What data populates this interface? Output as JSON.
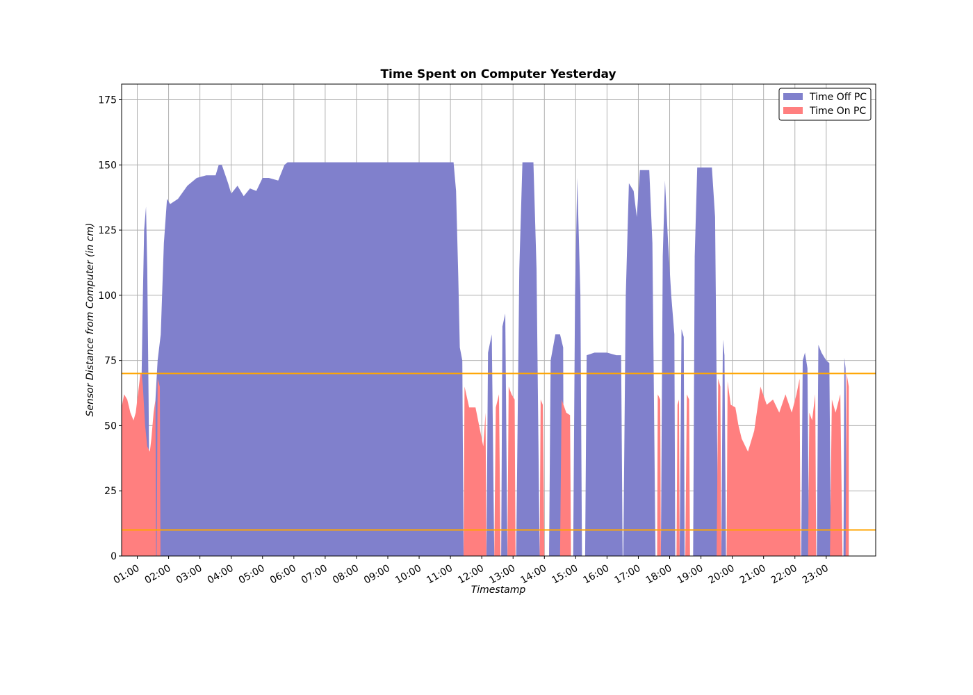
{
  "chart_data": {
    "type": "area",
    "title": "Time Spent on Computer Yesterday",
    "xlabel": "Timestamp",
    "ylabel": "Sensor Distance from Computer (in cm)",
    "xlim": [
      0.5,
      24.58
    ],
    "ylim": [
      0,
      181
    ],
    "x_unit": "hours since midnight",
    "x_ticks": [
      {
        "value": 1,
        "label": "01:00"
      },
      {
        "value": 2,
        "label": "02:00"
      },
      {
        "value": 3,
        "label": "03:00"
      },
      {
        "value": 4,
        "label": "04:00"
      },
      {
        "value": 5,
        "label": "05:00"
      },
      {
        "value": 6,
        "label": "06:00"
      },
      {
        "value": 7,
        "label": "07:00"
      },
      {
        "value": 8,
        "label": "08:00"
      },
      {
        "value": 9,
        "label": "09:00"
      },
      {
        "value": 10,
        "label": "10:00"
      },
      {
        "value": 11,
        "label": "11:00"
      },
      {
        "value": 12,
        "label": "12:00"
      },
      {
        "value": 13,
        "label": "13:00"
      },
      {
        "value": 14,
        "label": "14:00"
      },
      {
        "value": 15,
        "label": "15:00"
      },
      {
        "value": 16,
        "label": "16:00"
      },
      {
        "value": 17,
        "label": "17:00"
      },
      {
        "value": 18,
        "label": "18:00"
      },
      {
        "value": 19,
        "label": "19:00"
      },
      {
        "value": 20,
        "label": "20:00"
      },
      {
        "value": 21,
        "label": "21:00"
      },
      {
        "value": 22,
        "label": "22:00"
      },
      {
        "value": 23,
        "label": "23:00"
      }
    ],
    "y_ticks": [
      {
        "value": 0,
        "label": "0"
      },
      {
        "value": 25,
        "label": "25"
      },
      {
        "value": 50,
        "label": "50"
      },
      {
        "value": 75,
        "label": "75"
      },
      {
        "value": 100,
        "label": "100"
      },
      {
        "value": 125,
        "label": "125"
      },
      {
        "value": 150,
        "label": "150"
      },
      {
        "value": 175,
        "label": "175"
      }
    ],
    "grid": true,
    "legend_position": "top-right",
    "thresholds": [
      {
        "value": 70,
        "color": "#FFA500"
      },
      {
        "value": 10,
        "color": "#FFA500"
      }
    ],
    "series": [
      {
        "name": "Time Off PC",
        "color": "#8080cc",
        "points": [
          [
            1.1,
            0
          ],
          [
            1.12,
            55
          ],
          [
            1.18,
            100
          ],
          [
            1.22,
            125
          ],
          [
            1.28,
            134
          ],
          [
            1.32,
            110
          ],
          [
            1.36,
            60
          ],
          [
            1.4,
            0
          ],
          [
            1.55,
            0
          ],
          [
            1.58,
            60
          ],
          [
            1.65,
            75
          ],
          [
            1.75,
            85
          ],
          [
            1.85,
            120
          ],
          [
            1.95,
            137
          ],
          [
            2.05,
            135
          ],
          [
            2.3,
            137
          ],
          [
            2.6,
            142
          ],
          [
            2.9,
            145
          ],
          [
            3.2,
            146
          ],
          [
            3.5,
            146
          ],
          [
            3.6,
            150
          ],
          [
            3.7,
            150
          ],
          [
            3.9,
            143
          ],
          [
            4.0,
            139
          ],
          [
            4.2,
            142
          ],
          [
            4.4,
            138
          ],
          [
            4.6,
            141
          ],
          [
            4.8,
            140
          ],
          [
            5.0,
            145
          ],
          [
            5.2,
            145
          ],
          [
            5.5,
            144
          ],
          [
            5.7,
            150
          ],
          [
            5.8,
            151
          ],
          [
            6.5,
            151
          ],
          [
            7.5,
            151
          ],
          [
            8.5,
            151
          ],
          [
            9.5,
            151
          ],
          [
            10.5,
            151
          ],
          [
            11.1,
            151
          ],
          [
            11.18,
            140
          ],
          [
            11.25,
            107
          ],
          [
            11.3,
            80
          ],
          [
            11.38,
            75
          ],
          [
            11.42,
            0
          ],
          [
            12.15,
            0
          ],
          [
            12.2,
            78
          ],
          [
            12.32,
            85
          ],
          [
            12.4,
            0
          ],
          [
            12.62,
            0
          ],
          [
            12.66,
            88
          ],
          [
            12.75,
            93
          ],
          [
            12.82,
            0
          ],
          [
            13.1,
            0
          ],
          [
            13.2,
            110
          ],
          [
            13.3,
            151
          ],
          [
            13.65,
            151
          ],
          [
            13.75,
            110
          ],
          [
            13.85,
            0
          ],
          [
            14.15,
            0
          ],
          [
            14.2,
            75
          ],
          [
            14.35,
            85
          ],
          [
            14.5,
            85
          ],
          [
            14.6,
            80
          ],
          [
            14.62,
            0
          ],
          [
            14.92,
            0
          ],
          [
            14.98,
            100
          ],
          [
            15.05,
            145
          ],
          [
            15.15,
            100
          ],
          [
            15.2,
            0
          ],
          [
            15.3,
            0
          ],
          [
            15.35,
            77
          ],
          [
            15.6,
            78
          ],
          [
            16.0,
            78
          ],
          [
            16.3,
            77
          ],
          [
            16.45,
            77
          ],
          [
            16.5,
            0
          ],
          [
            16.52,
            0
          ],
          [
            16.6,
            100
          ],
          [
            16.7,
            143
          ],
          [
            16.85,
            140
          ],
          [
            16.95,
            130
          ],
          [
            17.05,
            148
          ],
          [
            17.35,
            148
          ],
          [
            17.45,
            120
          ],
          [
            17.55,
            0
          ],
          [
            17.72,
            0
          ],
          [
            17.78,
            115
          ],
          [
            17.85,
            144
          ],
          [
            17.95,
            120
          ],
          [
            18.05,
            100
          ],
          [
            18.15,
            85
          ],
          [
            18.18,
            0
          ],
          [
            18.32,
            0
          ],
          [
            18.38,
            87
          ],
          [
            18.45,
            84
          ],
          [
            18.48,
            0
          ],
          [
            18.75,
            0
          ],
          [
            18.8,
            115
          ],
          [
            18.88,
            149
          ],
          [
            19.25,
            149
          ],
          [
            19.35,
            149
          ],
          [
            19.45,
            130
          ],
          [
            19.55,
            0
          ],
          [
            19.65,
            0
          ],
          [
            19.7,
            83
          ],
          [
            19.75,
            77
          ],
          [
            19.8,
            0
          ],
          [
            22.2,
            0
          ],
          [
            22.25,
            75
          ],
          [
            22.32,
            78
          ],
          [
            22.4,
            72
          ],
          [
            22.45,
            0
          ],
          [
            22.7,
            0
          ],
          [
            22.75,
            81
          ],
          [
            22.85,
            78
          ],
          [
            23.0,
            75
          ],
          [
            23.1,
            74
          ],
          [
            23.15,
            0
          ],
          [
            23.55,
            0
          ],
          [
            23.58,
            76
          ],
          [
            23.62,
            72
          ],
          [
            23.65,
            0
          ]
        ]
      },
      {
        "name": "Time On PC",
        "color": "#ff7f7f",
        "points": [
          [
            0.5,
            0
          ],
          [
            0.5,
            57
          ],
          [
            0.58,
            62
          ],
          [
            0.68,
            60
          ],
          [
            0.78,
            55
          ],
          [
            0.88,
            52
          ],
          [
            0.95,
            55
          ],
          [
            1.05,
            65
          ],
          [
            1.1,
            70
          ],
          [
            1.14,
            70
          ],
          [
            1.18,
            65
          ],
          [
            1.25,
            50
          ],
          [
            1.32,
            42
          ],
          [
            1.4,
            40
          ],
          [
            1.45,
            45
          ],
          [
            1.52,
            55
          ],
          [
            1.58,
            60
          ],
          [
            1.6,
            0
          ],
          [
            1.62,
            0
          ],
          [
            1.65,
            68
          ],
          [
            1.72,
            65
          ],
          [
            1.74,
            0
          ],
          [
            11.42,
            0
          ],
          [
            11.45,
            65
          ],
          [
            11.6,
            57
          ],
          [
            11.8,
            57
          ],
          [
            11.95,
            48
          ],
          [
            12.05,
            42
          ],
          [
            12.12,
            55
          ],
          [
            12.15,
            0
          ],
          [
            12.4,
            0
          ],
          [
            12.45,
            57
          ],
          [
            12.55,
            62
          ],
          [
            12.6,
            0
          ],
          [
            12.82,
            0
          ],
          [
            12.86,
            65
          ],
          [
            12.95,
            62
          ],
          [
            13.05,
            60
          ],
          [
            13.08,
            0
          ],
          [
            13.85,
            0
          ],
          [
            13.88,
            60
          ],
          [
            13.95,
            58
          ],
          [
            14.0,
            0
          ],
          [
            14.5,
            0
          ],
          [
            14.55,
            60
          ],
          [
            14.7,
            55
          ],
          [
            14.82,
            54
          ],
          [
            14.85,
            0
          ],
          [
            17.6,
            0
          ],
          [
            17.62,
            62
          ],
          [
            17.7,
            60
          ],
          [
            17.72,
            0
          ],
          [
            18.22,
            0
          ],
          [
            18.25,
            58
          ],
          [
            18.3,
            60
          ],
          [
            18.32,
            0
          ],
          [
            18.5,
            0
          ],
          [
            18.55,
            62
          ],
          [
            18.62,
            60
          ],
          [
            18.65,
            0
          ],
          [
            19.5,
            0
          ],
          [
            19.55,
            68
          ],
          [
            19.62,
            65
          ],
          [
            19.65,
            0
          ],
          [
            19.82,
            0
          ],
          [
            19.85,
            67
          ],
          [
            19.95,
            58
          ],
          [
            20.1,
            57
          ],
          [
            20.2,
            50
          ],
          [
            20.3,
            45
          ],
          [
            20.5,
            40
          ],
          [
            20.7,
            48
          ],
          [
            20.9,
            65
          ],
          [
            21.1,
            58
          ],
          [
            21.3,
            60
          ],
          [
            21.5,
            55
          ],
          [
            21.7,
            62
          ],
          [
            21.9,
            55
          ],
          [
            22.05,
            62
          ],
          [
            22.15,
            68
          ],
          [
            22.18,
            0
          ],
          [
            22.42,
            0
          ],
          [
            22.46,
            55
          ],
          [
            22.55,
            52
          ],
          [
            22.65,
            62
          ],
          [
            22.68,
            0
          ],
          [
            23.12,
            0
          ],
          [
            23.18,
            60
          ],
          [
            23.3,
            55
          ],
          [
            23.45,
            62
          ],
          [
            23.52,
            0
          ],
          [
            23.62,
            0
          ],
          [
            23.65,
            70
          ],
          [
            23.72,
            65
          ],
          [
            23.72,
            0
          ]
        ]
      }
    ]
  }
}
